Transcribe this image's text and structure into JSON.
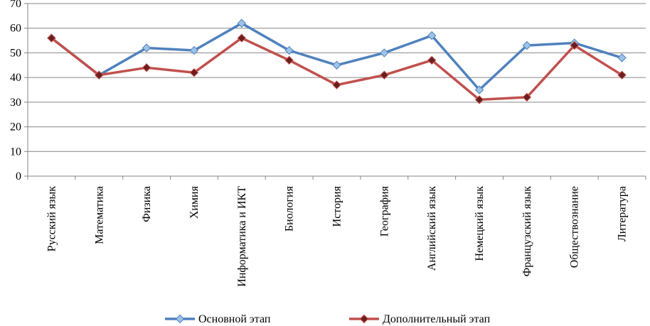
{
  "chart_data": {
    "type": "line",
    "categories": [
      "Русский язык",
      "Математика",
      "Физика",
      "Химия",
      "Информатика и ИКТ",
      "Биология",
      "История",
      "География",
      "Английский язык",
      "Немецкий язык",
      "Французский язык",
      "Обществознание",
      "Литература"
    ],
    "series": [
      {
        "name": "Основной этап",
        "color": "#4F81BD",
        "marker_fill": "#9DC3E6",
        "marker": "diamond",
        "values": [
          56,
          41,
          52,
          51,
          62,
          51,
          45,
          50,
          57,
          35,
          53,
          54,
          48
        ]
      },
      {
        "name": "Дополнительный этап",
        "color": "#C0504D",
        "marker_fill": "#6B1E1E",
        "marker": "diamond",
        "values": [
          56,
          41,
          44,
          42,
          56,
          47,
          37,
          41,
          47,
          31,
          32,
          53,
          41
        ]
      }
    ],
    "yticks": [
      0,
      10,
      20,
      30,
      40,
      50,
      60,
      70
    ],
    "ylim": [
      0,
      70
    ],
    "grid": true,
    "legend_position": "bottom"
  }
}
